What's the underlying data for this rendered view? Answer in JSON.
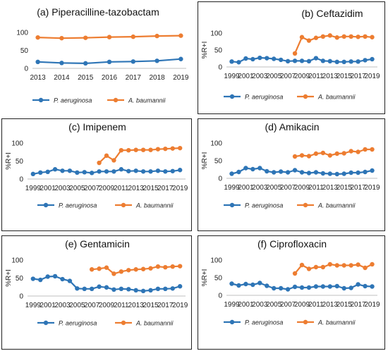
{
  "colors": {
    "series1": "#2E75B6",
    "series2": "#ED7D31",
    "axis": "#BFBFBF",
    "text": "#222222"
  },
  "chart_data": [
    {
      "type": "line",
      "title": "(a) Piperacilline-tazobactam",
      "ylabel": "",
      "ylim": [
        0,
        100
      ],
      "yticks": [
        0,
        50,
        100
      ],
      "xticks": [
        "2013",
        "2014",
        "2015",
        "2016",
        "2017",
        "2018",
        "2019"
      ],
      "x": [
        2013,
        2014,
        2015,
        2016,
        2017,
        2018,
        2019
      ],
      "series": [
        {
          "name": "P. aeruginosa",
          "x": [
            2013,
            2014,
            2015,
            2016,
            2017,
            2018,
            2019
          ],
          "values": [
            18,
            15,
            14,
            18,
            19,
            21,
            26
          ]
        },
        {
          "name": "A. baumannii",
          "x": [
            2013,
            2014,
            2015,
            2016,
            2017,
            2018,
            2019
          ],
          "values": [
            86,
            84,
            85,
            87,
            88,
            90,
            91
          ]
        }
      ]
    },
    {
      "type": "line",
      "title": "(b) Ceftazidim",
      "ylabel": "%R+I",
      "ylim": [
        0,
        100
      ],
      "yticks": [
        0,
        50,
        100
      ],
      "xticks": [
        "1999",
        "2001",
        "2003",
        "2005",
        "2007",
        "2009",
        "2011",
        "2013",
        "2015",
        "2017",
        "2019"
      ],
      "series": [
        {
          "name": "P. aeruginosa",
          "x": [
            1999,
            2000,
            2001,
            2002,
            2003,
            2004,
            2005,
            2006,
            2007,
            2008,
            2009,
            2010,
            2011,
            2012,
            2013,
            2014,
            2015,
            2016,
            2017,
            2018,
            2019
          ],
          "values": [
            16,
            14,
            25,
            23,
            27,
            26,
            24,
            21,
            17,
            18,
            18,
            17,
            26,
            18,
            17,
            15,
            15,
            16,
            16,
            20,
            23
          ]
        },
        {
          "name": "A. baumannii",
          "x": [
            2008,
            2009,
            2010,
            2011,
            2012,
            2013,
            2014,
            2015,
            2016,
            2017,
            2018,
            2019
          ],
          "values": [
            40,
            88,
            78,
            86,
            90,
            93,
            87,
            90,
            90,
            89,
            90,
            88
          ]
        }
      ]
    },
    {
      "type": "line",
      "title": "(c) Imipenem",
      "ylabel": "%R+I",
      "ylim": [
        0,
        100
      ],
      "yticks": [
        0,
        50,
        100
      ],
      "xticks": [
        "1999",
        "2001",
        "2003",
        "2005",
        "2007",
        "2009",
        "2011",
        "2013",
        "2015",
        "2017",
        "2019"
      ],
      "series": [
        {
          "name": "P. aeruginosa",
          "x": [
            1999,
            2000,
            2001,
            2002,
            2003,
            2004,
            2005,
            2006,
            2007,
            2008,
            2009,
            2010,
            2011,
            2012,
            2013,
            2014,
            2015,
            2016,
            2017,
            2018,
            2019
          ],
          "values": [
            14,
            18,
            20,
            27,
            23,
            23,
            18,
            19,
            17,
            21,
            21,
            21,
            27,
            22,
            23,
            21,
            21,
            23,
            21,
            22,
            25
          ]
        },
        {
          "name": "A. baumannii",
          "x": [
            2008,
            2009,
            2010,
            2011,
            2012,
            2013,
            2014,
            2015,
            2016,
            2017,
            2018,
            2019
          ],
          "values": [
            45,
            65,
            52,
            80,
            80,
            81,
            81,
            81,
            83,
            84,
            85,
            86
          ]
        }
      ]
    },
    {
      "type": "line",
      "title": "(d) Amikacin",
      "ylabel": "%R+I",
      "ylim": [
        0,
        100
      ],
      "yticks": [
        0,
        50,
        100
      ],
      "xticks": [
        "1999",
        "2001",
        "2003",
        "2005",
        "2007",
        "2009",
        "2011",
        "2013",
        "2015",
        "2017",
        "2019"
      ],
      "series": [
        {
          "name": "P. aeruginosa",
          "x": [
            1999,
            2000,
            2001,
            2002,
            2003,
            2004,
            2005,
            2006,
            2007,
            2008,
            2009,
            2010,
            2011,
            2012,
            2013,
            2014,
            2015,
            2016,
            2017,
            2018,
            2019
          ],
          "values": [
            13,
            18,
            29,
            26,
            29,
            20,
            17,
            19,
            17,
            23,
            17,
            15,
            17,
            14,
            13,
            12,
            13,
            16,
            16,
            18,
            22
          ]
        },
        {
          "name": "A. baumannii",
          "x": [
            2008,
            2009,
            2010,
            2011,
            2012,
            2013,
            2014,
            2015,
            2016,
            2017,
            2018,
            2019
          ],
          "values": [
            62,
            65,
            63,
            70,
            72,
            65,
            70,
            71,
            77,
            75,
            82,
            82
          ]
        }
      ]
    },
    {
      "type": "line",
      "title": "(e) Gentamicin",
      "ylabel": "%R+I",
      "ylim": [
        0,
        100
      ],
      "yticks": [
        0,
        50,
        100
      ],
      "xticks": [
        "1999",
        "2001",
        "2003",
        "2005",
        "2007",
        "2009",
        "2011",
        "2013",
        "2015",
        "2017",
        "2019"
      ],
      "series": [
        {
          "name": "P. aeruginosa",
          "x": [
            1999,
            2000,
            2001,
            2002,
            2003,
            2004,
            2005,
            2006,
            2007,
            2008,
            2009,
            2010,
            2011,
            2012,
            2013,
            2014,
            2015,
            2016,
            2017,
            2018,
            2019
          ],
          "values": [
            48,
            45,
            54,
            55,
            47,
            42,
            21,
            20,
            20,
            26,
            24,
            18,
            20,
            19,
            16,
            14,
            16,
            20,
            20,
            21,
            27
          ]
        },
        {
          "name": "A. baumannii",
          "x": [
            2007,
            2008,
            2009,
            2010,
            2011,
            2012,
            2013,
            2014,
            2015,
            2016,
            2017,
            2018,
            2019
          ],
          "values": [
            74,
            76,
            79,
            62,
            68,
            72,
            74,
            75,
            77,
            82,
            80,
            82,
            83
          ]
        }
      ]
    },
    {
      "type": "line",
      "title": "(f) Ciprofloxacin",
      "ylabel": "%R+I",
      "ylim": [
        0,
        100
      ],
      "yticks": [
        0,
        50,
        100
      ],
      "xticks": [
        "1999",
        "2001",
        "2003",
        "2005",
        "2007",
        "2009",
        "2011",
        "2013",
        "2015",
        "2017",
        "2019"
      ],
      "series": [
        {
          "name": "P. aeruginosa",
          "x": [
            1999,
            2000,
            2001,
            2002,
            2003,
            2004,
            2005,
            2006,
            2007,
            2008,
            2009,
            2010,
            2011,
            2012,
            2013,
            2014,
            2015,
            2016,
            2017,
            2018,
            2019
          ],
          "values": [
            33,
            28,
            32,
            30,
            35,
            27,
            20,
            20,
            17,
            24,
            22,
            22,
            25,
            25,
            25,
            26,
            20,
            21,
            31,
            26,
            25
          ]
        },
        {
          "name": "A. baumannii",
          "x": [
            2008,
            2009,
            2010,
            2011,
            2012,
            2013,
            2014,
            2015,
            2016,
            2017,
            2018,
            2019
          ],
          "values": [
            62,
            86,
            75,
            80,
            80,
            88,
            85,
            85,
            85,
            87,
            78,
            88
          ]
        }
      ]
    }
  ]
}
